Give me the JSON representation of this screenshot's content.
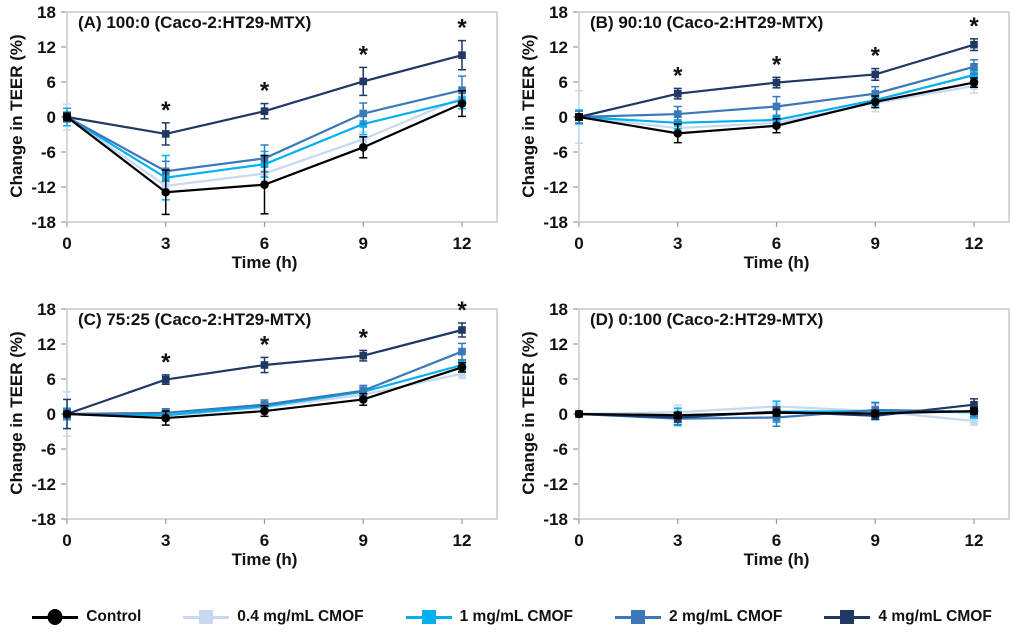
{
  "colors": {
    "control": "#000000",
    "c04": "#c6d9f1",
    "c1": "#00b0f0",
    "c2": "#3b78b8",
    "c4": "#1f3864",
    "plot_border": "#c9c9c9",
    "tick": "#9a9a9a",
    "sig": "#1f3864"
  },
  "sig_marker": "*",
  "legend": {
    "items": [
      {
        "label": "Control",
        "key": "control",
        "marker": "circle"
      },
      {
        "label": "0.4 mg/mL CMOF",
        "key": "c04",
        "marker": "square"
      },
      {
        "label": "1 mg/mL CMOF",
        "key": "c1",
        "marker": "square"
      },
      {
        "label": "2 mg/mL CMOF",
        "key": "c2",
        "marker": "square"
      },
      {
        "label": "4 mg/mL CMOF",
        "key": "c4",
        "marker": "square"
      }
    ]
  },
  "chart_data": [
    {
      "type": "line",
      "title": "(A) 100:0 (Caco-2:HT29-MTX)",
      "xlabel": "Time (h)",
      "ylabel": "Change in TEER (%)",
      "x": [
        0,
        3,
        6,
        9,
        12
      ],
      "ylim": [
        -18,
        18
      ],
      "yticks": [
        18,
        12,
        6,
        0,
        -6,
        -12,
        -18
      ],
      "sig_x": [
        3,
        6,
        9,
        12
      ],
      "series": [
        {
          "name": "Control",
          "key": "control",
          "values": [
            0,
            -12.9,
            -11.6,
            -5.2,
            2.3
          ],
          "err": [
            0.5,
            3.8,
            5.0,
            1.8,
            2.2
          ]
        },
        {
          "name": "0.4 mg/mL CMOF",
          "key": "c04",
          "values": [
            0,
            -11.8,
            -9.7,
            -3.8,
            3.3
          ],
          "err": [
            2.2,
            1.5,
            1.2,
            1.2,
            1.3
          ]
        },
        {
          "name": "1 mg/mL CMOF",
          "key": "c1",
          "values": [
            0,
            -10.4,
            -8.1,
            -1.2,
            2.9
          ],
          "err": [
            1.5,
            3.8,
            2.2,
            1.8,
            1.5
          ]
        },
        {
          "name": "2 mg/mL CMOF",
          "key": "c2",
          "values": [
            0,
            -9.3,
            -7.1,
            0.6,
            4.6
          ],
          "err": [
            0.8,
            1.7,
            2.3,
            1.8,
            2.4
          ]
        },
        {
          "name": "4 mg/mL CMOF",
          "key": "c4",
          "values": [
            0,
            -2.9,
            1.0,
            6.1,
            10.6
          ],
          "err": [
            0.8,
            1.9,
            1.3,
            2.4,
            2.5
          ]
        }
      ]
    },
    {
      "type": "line",
      "title": "(B) 90:10 (Caco-2:HT29-MTX)",
      "xlabel": "Time (h)",
      "ylabel": "Change in TEER (%)",
      "x": [
        0,
        3,
        6,
        9,
        12
      ],
      "ylim": [
        -18,
        18
      ],
      "yticks": [
        18,
        12,
        6,
        0,
        -6,
        -12,
        -18
      ],
      "sig_x": [
        3,
        6,
        9,
        12
      ],
      "series": [
        {
          "name": "Control",
          "key": "control",
          "values": [
            0,
            -2.8,
            -1.5,
            2.6,
            5.9
          ],
          "err": [
            0.5,
            1.6,
            1.2,
            1.0,
            0.8
          ]
        },
        {
          "name": "0.4 mg/mL CMOF",
          "key": "c04",
          "values": [
            0,
            -1.9,
            -1.0,
            2.4,
            5.3
          ],
          "err": [
            4.5,
            1.2,
            0.8,
            1.5,
            1.2
          ]
        },
        {
          "name": "1 mg/mL CMOF",
          "key": "c1",
          "values": [
            0,
            -1.0,
            -0.5,
            2.9,
            7.2
          ],
          "err": [
            1.2,
            1.0,
            0.8,
            1.0,
            0.8
          ]
        },
        {
          "name": "2 mg/mL CMOF",
          "key": "c2",
          "values": [
            0,
            0.5,
            1.8,
            4.0,
            8.6
          ],
          "err": [
            1.0,
            1.3,
            1.7,
            1.2,
            1.2
          ]
        },
        {
          "name": "4 mg/mL CMOF",
          "key": "c4",
          "values": [
            0,
            4.0,
            5.9,
            7.3,
            12.4
          ],
          "err": [
            0.5,
            0.9,
            0.9,
            1.0,
            1.0
          ]
        }
      ]
    },
    {
      "type": "line",
      "title": "(C) 75:25 (Caco-2:HT29-MTX)",
      "xlabel": "Time (h)",
      "ylabel": "Change in TEER (%)",
      "x": [
        0,
        3,
        6,
        9,
        12
      ],
      "ylim": [
        -18,
        18
      ],
      "yticks": [
        18,
        12,
        6,
        0,
        -6,
        -12,
        -18
      ],
      "sig_x": [
        3,
        6,
        9,
        12
      ],
      "series": [
        {
          "name": "Control",
          "key": "control",
          "values": [
            0,
            -0.7,
            0.5,
            2.5,
            8.0
          ],
          "err": [
            0.3,
            1.2,
            0.9,
            1.0,
            0.8
          ]
        },
        {
          "name": "0.4 mg/mL CMOF",
          "key": "c04",
          "values": [
            0,
            -0.3,
            1.1,
            3.3,
            6.9
          ],
          "err": [
            3.8,
            0.9,
            0.8,
            1.2,
            0.8
          ]
        },
        {
          "name": "1 mg/mL CMOF",
          "key": "c1",
          "values": [
            0,
            -0.2,
            1.3,
            3.8,
            8.4
          ],
          "err": [
            1.0,
            0.7,
            0.7,
            0.8,
            0.8
          ]
        },
        {
          "name": "2 mg/mL CMOF",
          "key": "c2",
          "values": [
            0,
            0.2,
            1.6,
            4.0,
            10.7
          ],
          "err": [
            0.8,
            0.7,
            0.8,
            0.9,
            1.4
          ]
        },
        {
          "name": "4 mg/mL CMOF",
          "key": "c4",
          "values": [
            0,
            5.9,
            8.4,
            10.0,
            14.4
          ],
          "err": [
            2.5,
            0.8,
            1.3,
            0.9,
            1.2
          ]
        }
      ]
    },
    {
      "type": "line",
      "title": "(D) 0:100 (Caco-2:HT29-MTX)",
      "xlabel": "Time (h)",
      "ylabel": "Change in TEER (%)",
      "x": [
        0,
        3,
        6,
        9,
        12
      ],
      "ylim": [
        -18,
        18
      ],
      "yticks": [
        18,
        12,
        6,
        0,
        -6,
        -12,
        -18
      ],
      "sig_x": [],
      "series": [
        {
          "name": "Control",
          "key": "control",
          "values": [
            0,
            -0.2,
            0.2,
            0.1,
            0.5
          ],
          "err": [
            0.2,
            0.5,
            0.5,
            0.5,
            0.5
          ]
        },
        {
          "name": "0.4 mg/mL CMOF",
          "key": "c04",
          "values": [
            0,
            0.3,
            1.3,
            0.5,
            -1.2
          ],
          "err": [
            0.3,
            1.2,
            0.6,
            1.0,
            0.7
          ]
        },
        {
          "name": "1 mg/mL CMOF",
          "key": "c1",
          "values": [
            0,
            -0.5,
            0.4,
            0.5,
            0.3
          ],
          "err": [
            0.3,
            1.5,
            1.8,
            1.5,
            1.0
          ]
        },
        {
          "name": "2 mg/mL CMOF",
          "key": "c2",
          "values": [
            0,
            -0.8,
            -0.6,
            0.7,
            0.4
          ],
          "err": [
            0.3,
            1.0,
            1.5,
            1.2,
            0.8
          ]
        },
        {
          "name": "4 mg/mL CMOF",
          "key": "c4",
          "values": [
            0,
            -0.6,
            0.4,
            -0.3,
            1.6
          ],
          "err": [
            0.3,
            0.8,
            0.8,
            0.6,
            1.0
          ]
        }
      ]
    }
  ]
}
